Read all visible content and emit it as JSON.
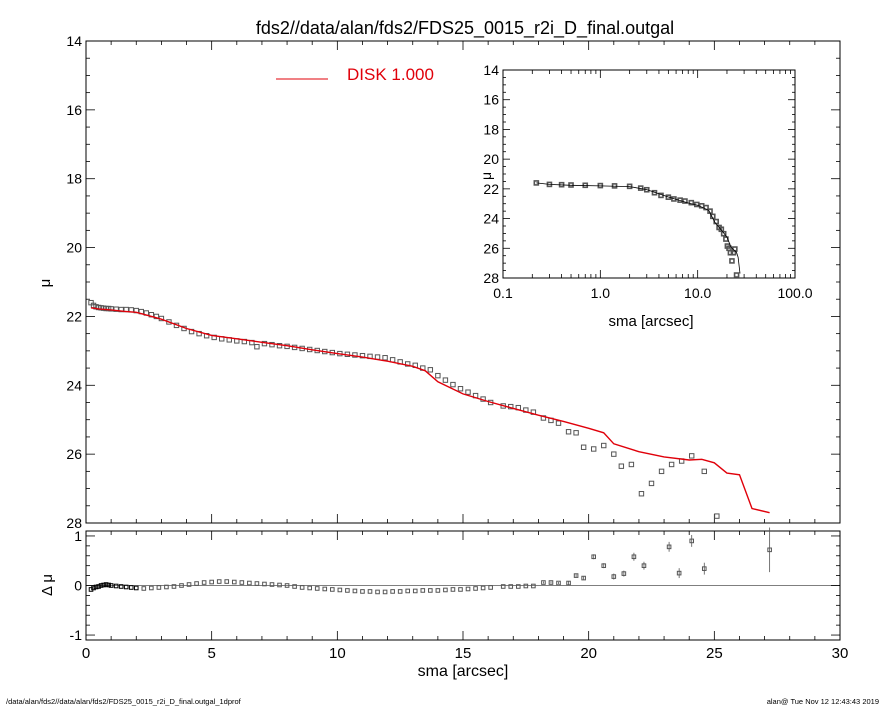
{
  "page": {
    "title": "fds2//data/alan/fds2/FDS25_0015_r2i_D_final.outgal",
    "footer_left": "/data/alan/fds2//data/alan/fds2/FDS25_0015_r2i_D_final.outgal_1dprof",
    "footer_right": "alan@  Tue Nov 12 12:43:43 2019"
  },
  "colors": {
    "model": "#e0000a",
    "data": "#555555",
    "axes": "#000000"
  },
  "chart_data": [
    {
      "id": "main",
      "type": "scatter",
      "title": "fds2//data/alan/fds2/FDS25_0015_r2i_D_final.outgal",
      "ylabel": "μ",
      "xlim": [
        0,
        30
      ],
      "ylim": [
        28,
        14
      ],
      "y_inverted": true,
      "yticks": [
        14,
        16,
        18,
        20,
        22,
        24,
        26,
        28
      ],
      "ytick_labels": [
        "14",
        "16",
        "18",
        "20",
        "22",
        "24",
        "26",
        "28"
      ],
      "legend": {
        "label": "DISK  1.000",
        "placement": "top-center"
      },
      "series": [
        {
          "name": "DISK  1.000",
          "kind": "line",
          "x": [
            0.2,
            0.5,
            1.0,
            1.5,
            2.0,
            2.5,
            3.0,
            4.0,
            5.0,
            6.0,
            7.0,
            8.0,
            9.0,
            10.0,
            11.0,
            12.0,
            13.0,
            13.5,
            14.0,
            15.0,
            16.0,
            17.0,
            18.0,
            19.0,
            20.0,
            20.6,
            21.0,
            22.0,
            23.0,
            24.0,
            24.5,
            25.0,
            25.5,
            26.0,
            26.5,
            27.2
          ],
          "y": [
            21.75,
            21.78,
            21.81,
            21.85,
            21.88,
            21.98,
            22.08,
            22.35,
            22.55,
            22.65,
            22.75,
            22.85,
            22.97,
            23.08,
            23.18,
            23.3,
            23.45,
            23.58,
            23.9,
            24.25,
            24.47,
            24.67,
            24.87,
            25.05,
            25.25,
            25.38,
            25.7,
            25.93,
            26.08,
            26.17,
            26.15,
            26.25,
            26.55,
            26.6,
            27.58,
            27.7
          ]
        },
        {
          "name": "",
          "kind": "points",
          "x": [
            0.2,
            0.3,
            0.4,
            0.5,
            0.6,
            0.7,
            0.8,
            0.9,
            1.0,
            1.2,
            1.4,
            1.6,
            1.8,
            2.0,
            2.2,
            2.4,
            2.6,
            2.8,
            3.0,
            3.3,
            3.6,
            3.9,
            4.2,
            4.5,
            4.8,
            5.1,
            5.4,
            5.7,
            6.0,
            6.3,
            6.6,
            6.8,
            7.1,
            7.4,
            7.7,
            8.0,
            8.3,
            8.6,
            8.9,
            9.2,
            9.5,
            9.8,
            10.1,
            10.4,
            10.7,
            11.0,
            11.3,
            11.6,
            11.9,
            12.2,
            12.5,
            12.8,
            13.1,
            13.4,
            13.7,
            14.0,
            14.3,
            14.6,
            14.9,
            15.2,
            15.5,
            15.8,
            16.1,
            16.6,
            16.9,
            17.2,
            17.5,
            17.8,
            18.2,
            18.5,
            18.8,
            19.2,
            19.5,
            19.8,
            20.2,
            20.6,
            21.0,
            21.3,
            21.7,
            22.1,
            22.5,
            22.9,
            23.3,
            23.7,
            24.1,
            24.6,
            25.1
          ],
          "y": [
            21.6,
            21.68,
            21.72,
            21.74,
            21.75,
            21.76,
            21.77,
            21.77,
            21.78,
            21.79,
            21.8,
            21.8,
            21.81,
            21.83,
            21.86,
            21.9,
            21.95,
            22.0,
            22.06,
            22.16,
            22.26,
            22.35,
            22.44,
            22.5,
            22.56,
            22.61,
            22.65,
            22.68,
            22.71,
            22.73,
            22.76,
            22.88,
            22.79,
            22.82,
            22.85,
            22.87,
            22.9,
            22.93,
            22.96,
            22.99,
            23.02,
            23.05,
            23.08,
            23.1,
            23.12,
            23.14,
            23.16,
            23.18,
            23.2,
            23.26,
            23.32,
            23.38,
            23.42,
            23.5,
            23.55,
            23.72,
            23.85,
            23.98,
            24.1,
            24.2,
            24.3,
            24.4,
            24.5,
            24.6,
            24.62,
            24.65,
            24.72,
            24.78,
            24.95,
            25.02,
            25.1,
            25.35,
            25.38,
            25.8,
            25.85,
            25.75,
            26.0,
            26.35,
            26.3,
            27.15,
            26.85,
            26.5,
            26.3,
            26.2,
            26.05,
            26.5,
            27.8
          ]
        }
      ]
    },
    {
      "id": "residual",
      "type": "scatter",
      "xlabel": "sma [arcsec]",
      "ylabel": "Δ μ",
      "xlim": [
        0,
        30
      ],
      "ylim": [
        -1.1,
        1.1
      ],
      "xticks": [
        0,
        5,
        10,
        15,
        20,
        25,
        30
      ],
      "xtick_labels": [
        "0",
        "5",
        "10",
        "15",
        "20",
        "25",
        "30"
      ],
      "yticks": [
        -1,
        0,
        1
      ],
      "ytick_labels": [
        "-1",
        "0",
        "1"
      ],
      "zero_line": true,
      "series": [
        {
          "name": "",
          "kind": "points",
          "x": [
            0.2,
            0.3,
            0.4,
            0.5,
            0.6,
            0.7,
            0.8,
            0.9,
            1.0,
            1.2,
            1.4,
            1.6,
            1.8,
            2.0,
            2.3,
            2.6,
            2.9,
            3.2,
            3.5,
            3.8,
            4.1,
            4.4,
            4.7,
            5.0,
            5.3,
            5.6,
            5.9,
            6.2,
            6.5,
            6.8,
            7.1,
            7.4,
            7.7,
            8.0,
            8.3,
            8.6,
            8.9,
            9.2,
            9.5,
            9.8,
            10.1,
            10.4,
            10.7,
            11.0,
            11.3,
            11.6,
            11.9,
            12.2,
            12.5,
            12.8,
            13.1,
            13.4,
            13.7,
            14.0,
            14.3,
            14.6,
            14.9,
            15.2,
            15.5,
            15.8,
            16.1,
            16.6,
            16.9,
            17.2,
            17.5,
            17.8,
            18.2,
            18.5,
            18.8,
            19.2,
            19.5,
            19.8,
            20.2,
            20.6,
            21.0,
            21.4,
            21.8,
            22.2,
            23.2,
            23.6,
            24.1,
            24.6,
            27.2
          ],
          "y": [
            -0.08,
            -0.05,
            -0.03,
            -0.02,
            0.0,
            0.01,
            0.02,
            0.01,
            0.0,
            -0.01,
            -0.02,
            -0.03,
            -0.04,
            -0.05,
            -0.06,
            -0.05,
            -0.04,
            -0.03,
            -0.02,
            0.0,
            0.02,
            0.04,
            0.06,
            0.07,
            0.08,
            0.08,
            0.07,
            0.06,
            0.05,
            0.04,
            0.03,
            0.02,
            0.01,
            0.0,
            -0.02,
            -0.04,
            -0.05,
            -0.06,
            -0.07,
            -0.08,
            -0.09,
            -0.1,
            -0.11,
            -0.12,
            -0.12,
            -0.13,
            -0.13,
            -0.12,
            -0.12,
            -0.11,
            -0.11,
            -0.1,
            -0.1,
            -0.1,
            -0.09,
            -0.08,
            -0.08,
            -0.07,
            -0.06,
            -0.05,
            -0.04,
            -0.02,
            -0.02,
            -0.02,
            -0.01,
            -0.01,
            0.06,
            0.06,
            0.05,
            0.05,
            0.2,
            0.15,
            0.58,
            0.4,
            0.18,
            0.24,
            0.58,
            0.4,
            0.78,
            0.25,
            0.9,
            0.34,
            0.72
          ],
          "err": [
            0.01,
            0.01,
            0.01,
            0.01,
            0.01,
            0.01,
            0.01,
            0.01,
            0.01,
            0.01,
            0.01,
            0.01,
            0.01,
            0.01,
            0.01,
            0.01,
            0.01,
            0.01,
            0.01,
            0.01,
            0.01,
            0.01,
            0.01,
            0.01,
            0.01,
            0.01,
            0.01,
            0.01,
            0.01,
            0.01,
            0.01,
            0.01,
            0.01,
            0.01,
            0.01,
            0.01,
            0.01,
            0.01,
            0.01,
            0.01,
            0.01,
            0.01,
            0.01,
            0.01,
            0.01,
            0.01,
            0.01,
            0.01,
            0.01,
            0.01,
            0.01,
            0.01,
            0.01,
            0.01,
            0.01,
            0.01,
            0.01,
            0.01,
            0.01,
            0.01,
            0.01,
            0.01,
            0.01,
            0.01,
            0.01,
            0.01,
            0.02,
            0.02,
            0.02,
            0.03,
            0.03,
            0.03,
            0.05,
            0.05,
            0.06,
            0.06,
            0.08,
            0.08,
            0.1,
            0.1,
            0.12,
            0.12,
            0.45
          ]
        }
      ]
    },
    {
      "id": "inset",
      "type": "scatter",
      "xlabel": "sma [arcsec]",
      "ylabel": "μ",
      "x_scale": "log",
      "xlim": [
        0.1,
        100
      ],
      "ylim": [
        28,
        14
      ],
      "y_inverted": true,
      "xticks": [
        0.1,
        1,
        10,
        100
      ],
      "xtick_labels": [
        "0.1",
        "1.0",
        "10.0",
        "100.0"
      ],
      "yticks": [
        14,
        16,
        18,
        20,
        22,
        24,
        26,
        28
      ],
      "ytick_labels": [
        "14",
        "16",
        "18",
        "20",
        "22",
        "24",
        "26",
        "28"
      ],
      "series": [
        {
          "name": "",
          "kind": "line",
          "x": [
            0.22,
            0.3,
            0.5,
            1.0,
            2.0,
            3.0,
            5.0,
            8.0,
            10.0,
            13.0,
            15.0,
            17.0,
            20.0,
            22.0,
            24.0,
            25.0,
            26.0,
            27.2
          ],
          "y": [
            21.6,
            21.7,
            21.76,
            21.8,
            21.85,
            22.05,
            22.55,
            22.95,
            23.1,
            23.45,
            24.25,
            24.67,
            25.25,
            25.93,
            26.17,
            26.25,
            26.6,
            27.7
          ]
        },
        {
          "name": "",
          "kind": "points",
          "x": [
            0.22,
            0.3,
            0.4,
            0.5,
            0.7,
            1.0,
            1.4,
            2.0,
            2.6,
            3.0,
            3.6,
            4.2,
            5.0,
            5.7,
            6.6,
            7.4,
            8.6,
            9.8,
            11.0,
            12.2,
            13.4,
            14.3,
            15.5,
            16.6,
            17.5,
            18.5,
            19.5,
            20.2,
            21.0,
            21.7,
            22.5,
            23.3,
            24.1,
            25.1
          ],
          "y": [
            21.6,
            21.7,
            21.72,
            21.74,
            21.76,
            21.78,
            21.8,
            21.83,
            21.95,
            22.06,
            22.26,
            22.44,
            22.56,
            22.68,
            22.76,
            22.82,
            22.93,
            23.05,
            23.14,
            23.26,
            23.5,
            23.85,
            24.2,
            24.6,
            24.72,
            25.02,
            25.38,
            25.85,
            26.0,
            26.3,
            26.85,
            26.3,
            26.05,
            27.8
          ]
        }
      ]
    }
  ]
}
